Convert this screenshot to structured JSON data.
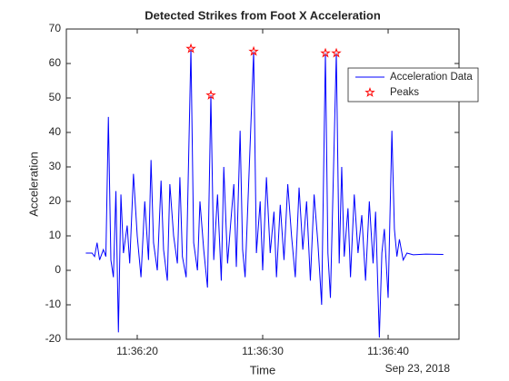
{
  "chart_data": {
    "type": "line",
    "title": "Detected Strikes from Foot X Acceleration",
    "xlabel": "Time",
    "ylabel": "Acceleration",
    "date_label": "Sep 23, 2018",
    "xlim": [
      "11:36:14.35",
      "11:36:45.65"
    ],
    "xticks": [
      "11:36:20",
      "11:36:30",
      "11:36:40"
    ],
    "ylim": [
      -20,
      70
    ],
    "yticks": [
      -20,
      -10,
      0,
      10,
      20,
      30,
      40,
      50,
      60,
      70
    ],
    "legend": "northeast",
    "series": [
      {
        "name": "Acceleration Data",
        "color": "#0000ff",
        "marker": "none",
        "x": [
          "11:36:15.9",
          "11:36:16.4",
          "11:36:16.6",
          "11:36:16.8",
          "11:36:17.0",
          "11:36:17.3",
          "11:36:17.5",
          "11:36:17.7",
          "11:36:17.9",
          "11:36:18.1",
          "11:36:18.3",
          "11:36:18.5",
          "11:36:18.7",
          "11:36:18.9",
          "11:36:19.2",
          "11:36:19.4",
          "11:36:19.7",
          "11:36:20.0",
          "11:36:20.3",
          "11:36:20.6",
          "11:36:20.9",
          "11:36:21.1",
          "11:36:21.3",
          "11:36:21.6",
          "11:36:21.9",
          "11:36:22.1",
          "11:36:22.4",
          "11:36:22.6",
          "11:36:22.9",
          "11:36:23.2",
          "11:36:23.4",
          "11:36:23.6",
          "11:36:23.9",
          "11:36:24.28",
          "11:36:24.5",
          "11:36:24.8",
          "11:36:25.0",
          "11:36:25.3",
          "11:36:25.6",
          "11:36:25.87",
          "11:36:26.1",
          "11:36:26.4",
          "11:36:26.7",
          "11:36:26.9",
          "11:36:27.2",
          "11:36:27.5",
          "11:36:27.7",
          "11:36:27.9",
          "11:36:28.2",
          "11:36:28.4",
          "11:36:28.6",
          "11:36:29.28",
          "11:36:29.5",
          "11:36:29.8",
          "11:36:30.0",
          "11:36:30.3",
          "11:36:30.6",
          "11:36:30.9",
          "11:36:31.1",
          "11:36:31.4",
          "11:36:31.7",
          "11:36:32.0",
          "11:36:32.3",
          "11:36:32.6",
          "11:36:32.9",
          "11:36:33.2",
          "11:36:33.5",
          "11:36:33.8",
          "11:36:34.1",
          "11:36:34.4",
          "11:36:34.7",
          "11:36:35.0",
          "11:36:35.2",
          "11:36:35.4",
          "11:36:35.87",
          "11:36:36.1",
          "11:36:36.3",
          "11:36:36.5",
          "11:36:36.8",
          "11:36:37.0",
          "11:36:37.3",
          "11:36:37.6",
          "11:36:37.9",
          "11:36:38.2",
          "11:36:38.5",
          "11:36:38.8",
          "11:36:39.0",
          "11:36:39.3",
          "11:36:39.5",
          "11:36:39.7",
          "11:36:40.0",
          "11:36:40.3",
          "11:36:40.5",
          "11:36:40.7",
          "11:36:40.9",
          "11:36:41.2",
          "11:36:41.5",
          "11:36:42.0",
          "11:36:43.0",
          "11:36:44.4"
        ],
        "values": [
          5,
          5,
          4,
          8,
          3,
          6,
          4,
          44.5,
          3,
          -2,
          23,
          -18,
          22,
          5,
          13,
          2,
          28,
          10,
          -2,
          20,
          3,
          32,
          8,
          0,
          26,
          6,
          -3,
          25,
          10,
          2,
          27,
          4,
          -2,
          64.3,
          8,
          0,
          20,
          6,
          -5,
          50.8,
          3,
          22,
          -3,
          30,
          2,
          16,
          25,
          1,
          40.5,
          6,
          -2,
          63.5,
          5,
          20,
          0,
          27,
          5,
          17,
          -2,
          19,
          3,
          25,
          10,
          -2,
          24,
          6,
          20,
          -3,
          22,
          8,
          -10,
          63,
          5,
          -8,
          63,
          2,
          30,
          4,
          18,
          -2,
          22,
          5,
          16,
          -3,
          20,
          2,
          17,
          -19.5,
          5,
          12,
          -8,
          40.5,
          12,
          4,
          9,
          3,
          5,
          4.5,
          4.7,
          4.6
        ]
      },
      {
        "name": "Peaks",
        "color": "#ff0000",
        "marker": "star",
        "line": "none",
        "x": [
          "11:36:24.28",
          "11:36:25.87",
          "11:36:29.28",
          "11:36:35.0",
          "11:36:35.87"
        ],
        "values": [
          64.3,
          50.8,
          63.5,
          63,
          63
        ]
      }
    ]
  }
}
